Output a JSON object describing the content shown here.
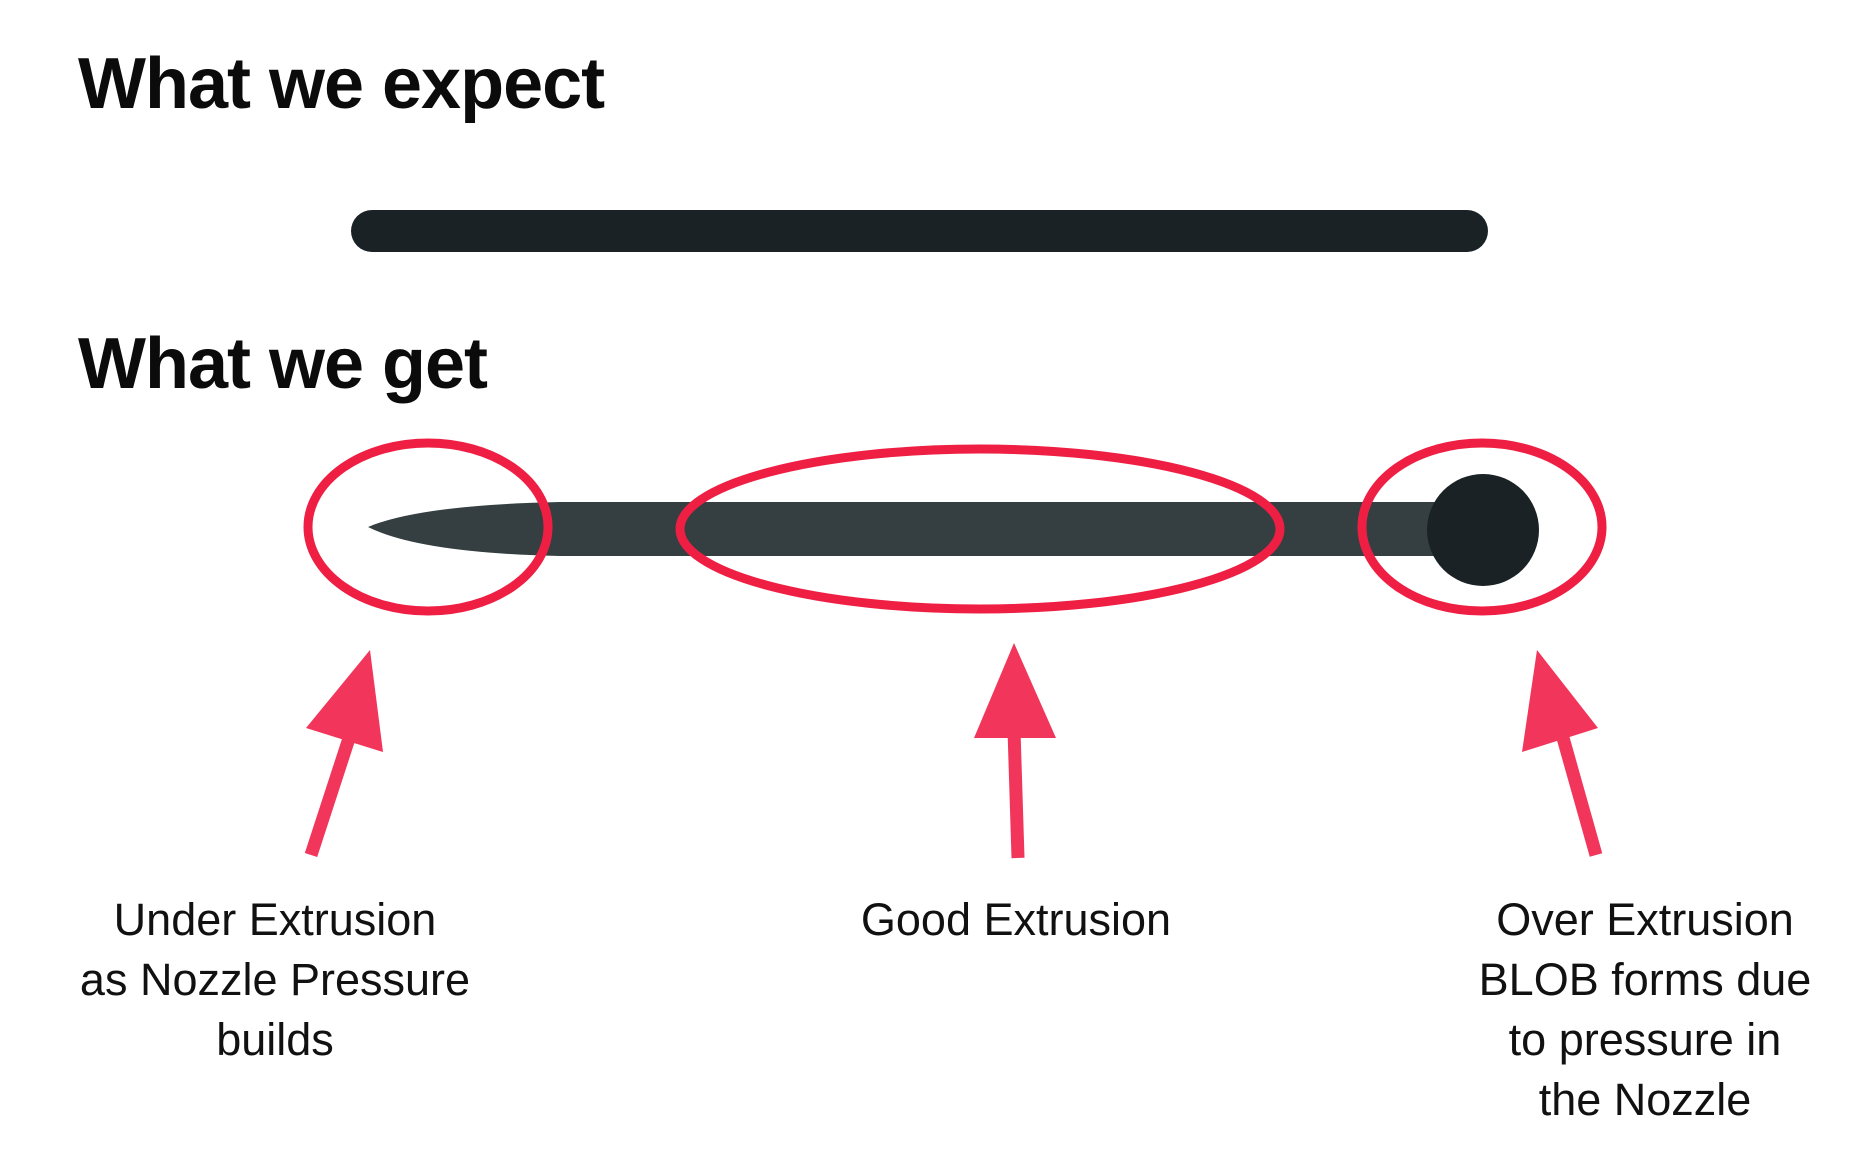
{
  "headings": {
    "expect": "What we expect",
    "get": "What we get"
  },
  "labels": {
    "under": "Under Extrusion\nas Nozzle Pressure\nbuilds",
    "good": "Good Extrusion",
    "over": "Over Extrusion\nBLOB forms due\nto pressure in\nthe Nozzle"
  },
  "colors": {
    "line_dark": "#1a2226",
    "line_actual": "#353e40",
    "highlight": "#ef1f44",
    "arrow": "#f2365b"
  }
}
